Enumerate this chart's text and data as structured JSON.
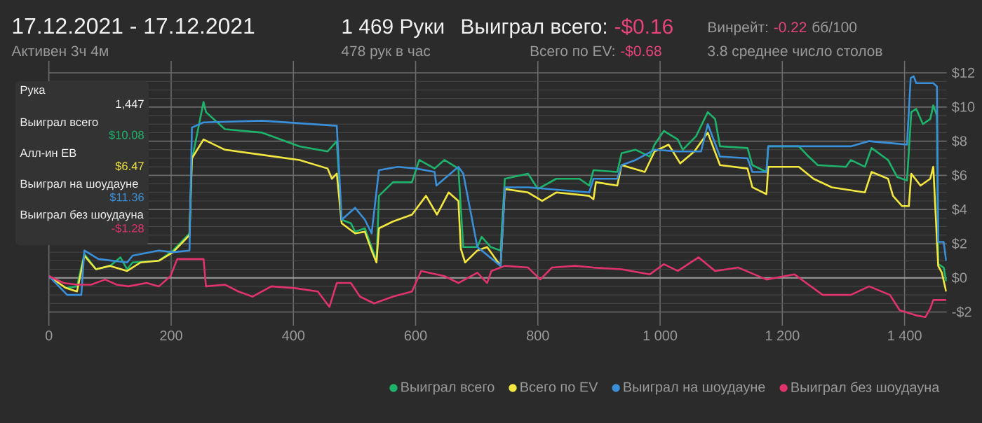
{
  "chart_data": {
    "type": "line",
    "title": "17.12.2021 - 17.12.2021",
    "subtitle": "Активен 3ч 4м",
    "annotations": [
      "1 469 Руки",
      "478 рук в час",
      "Выиграл всего:",
      "-$0.16",
      "Всего по EV:",
      "-$0.68",
      "Винрейт:",
      "-0.22",
      "бб/100",
      "3.8 среднее число столов",
      "Рука",
      "1,447",
      "Выиграл всего",
      "$10.08",
      "Алл-ин EB",
      "$6.47",
      "Выиграл на шоудауне",
      "$11.36",
      "Выиграл без шоудауна",
      "-$1.28"
    ],
    "xlim": [
      0,
      1469
    ],
    "xticks": [
      0,
      200,
      400,
      600,
      800,
      {
        "value": 1000,
        "label": "1 000"
      },
      {
        "value": 1200,
        "label": "1 200"
      },
      {
        "value": 1400,
        "label": "1 400"
      }
    ],
    "ylim": [
      -2.8,
      12.7
    ],
    "yticks": [
      {
        "value": -2,
        "label": "-$2"
      },
      {
        "value": 0,
        "label": "$0"
      },
      {
        "value": 2,
        "label": "$2"
      },
      {
        "value": 4,
        "label": "$4"
      },
      {
        "value": 6,
        "label": "$6"
      },
      {
        "value": 8,
        "label": "$8"
      },
      {
        "value": 10,
        "label": "$10"
      },
      {
        "value": 12,
        "label": "$12"
      }
    ],
    "grid": true,
    "legend": "bottom",
    "ref_lines": [
      {
        "axis": "y",
        "value": 0,
        "color": "#9a9a9a"
      }
    ],
    "series": [
      {
        "name": "Выиграл всего",
        "color": "#1db36b",
        "x": [
          28,
          46,
          58,
          77,
          100,
          117,
          128,
          137,
          180,
          203,
          230,
          234,
          253,
          257,
          288,
          349,
          410,
          456,
          471,
          479,
          494,
          501,
          517,
          528,
          536,
          540,
          563,
          594,
          606,
          631,
          647,
          670,
          678,
          701,
          708,
          723,
          739,
          746,
          784,
          800,
          830,
          868,
          884,
          891,
          930,
          937,
          960,
          983,
          991,
          1006,
          1029,
          1037,
          1059,
          1078,
          1090,
          1098,
          1143,
          1151,
          1174,
          1177,
          1227,
          1243,
          1258,
          1304,
          1312,
          1335,
          1346,
          1373,
          1388,
          1404,
          1411,
          1419,
          1430,
          1442,
          1447,
          1453,
          1455,
          1464,
          1468
        ],
        "values": [
          -0.6,
          -0.5,
          1.4,
          0.5,
          0.7,
          1.2,
          0.5,
          0.9,
          1.0,
          1.6,
          2.6,
          6.9,
          10.3,
          9.7,
          8.7,
          8.5,
          7.7,
          7.4,
          8.0,
          3.4,
          3.2,
          2.7,
          2.9,
          1.8,
          1.0,
          4.8,
          5.6,
          5.6,
          6.9,
          6.4,
          6.9,
          6.4,
          1.8,
          1.8,
          2.4,
          1.8,
          1.6,
          5.8,
          6.1,
          5.2,
          5.8,
          5.8,
          5.4,
          6.3,
          6.2,
          7.3,
          7.5,
          7.1,
          7.8,
          8.6,
          8.1,
          7.5,
          8.3,
          9.7,
          9.3,
          7.7,
          7.6,
          6.6,
          6.2,
          7.7,
          7.7,
          7.1,
          6.6,
          6.5,
          6.9,
          6.5,
          7.6,
          6.9,
          5.9,
          5.7,
          9.7,
          9.9,
          9.0,
          9.3,
          10.1,
          9.5,
          0.8,
          0.6,
          -0.2
        ]
      },
      {
        "name": "Всего по EV",
        "color": "#f2e640",
        "x": [
          0,
          28,
          46,
          58,
          77,
          100,
          128,
          150,
          180,
          203,
          230,
          234,
          253,
          288,
          349,
          410,
          456,
          463,
          471,
          479,
          501,
          517,
          528,
          536,
          540,
          563,
          594,
          617,
          635,
          654,
          670,
          674,
          681,
          701,
          717,
          739,
          746,
          784,
          807,
          830,
          884,
          891,
          895,
          930,
          937,
          975,
          991,
          1014,
          1033,
          1056,
          1078,
          1098,
          1143,
          1151,
          1174,
          1177,
          1227,
          1251,
          1281,
          1335,
          1346,
          1373,
          1381,
          1396,
          1407,
          1411,
          1426,
          1442,
          1447,
          1455,
          1461,
          1468
        ],
        "values": [
          0.1,
          -0.6,
          -0.8,
          1.3,
          0.5,
          0.7,
          0.4,
          0.9,
          1.0,
          1.5,
          2.5,
          7.0,
          8.1,
          7.5,
          7.2,
          6.9,
          6.4,
          5.8,
          6.1,
          3.2,
          2.6,
          2.7,
          1.6,
          0.9,
          2.9,
          3.3,
          3.7,
          4.8,
          3.7,
          5.0,
          4.5,
          1.7,
          0.9,
          1.6,
          1.8,
          0.7,
          5.2,
          5.0,
          4.5,
          5.0,
          4.8,
          4.6,
          5.6,
          5.4,
          6.6,
          6.2,
          7.4,
          7.8,
          6.7,
          7.4,
          8.5,
          6.6,
          6.4,
          5.3,
          4.9,
          6.5,
          6.5,
          5.8,
          5.3,
          5.0,
          6.2,
          5.8,
          4.8,
          4.2,
          4.2,
          6.1,
          5.4,
          5.8,
          6.5,
          0.7,
          0.3,
          -0.8
        ]
      },
      {
        "name": "Выиграл на шоудауне",
        "color": "#3a8fd9",
        "x": [
          0,
          30,
          53,
          58,
          81,
          128,
          137,
          180,
          203,
          230,
          234,
          253,
          349,
          471,
          479,
          501,
          517,
          528,
          540,
          571,
          601,
          631,
          634,
          670,
          678,
          701,
          739,
          746,
          784,
          884,
          891,
          930,
          937,
          960,
          991,
          1029,
          1067,
          1078,
          1098,
          1143,
          1151,
          1174,
          1177,
          1312,
          1342,
          1404,
          1410,
          1415,
          1419,
          1447,
          1453,
          1455,
          1464,
          1468
        ],
        "values": [
          0.1,
          -1.0,
          -1.0,
          1.6,
          1.1,
          0.9,
          1.3,
          1.6,
          1.5,
          1.6,
          8.8,
          9.1,
          9.2,
          8.9,
          3.4,
          4.1,
          3.4,
          2.6,
          6.3,
          6.5,
          6.4,
          6.2,
          5.4,
          6.5,
          6.1,
          1.8,
          0.7,
          5.3,
          5.3,
          5.0,
          5.8,
          5.8,
          6.6,
          6.9,
          7.5,
          7.4,
          7.4,
          9.0,
          7.1,
          7.0,
          6.2,
          6.2,
          7.7,
          7.7,
          8.0,
          7.8,
          11.7,
          11.8,
          11.4,
          11.4,
          11.2,
          2.1,
          2.1,
          1.0
        ]
      },
      {
        "name": "Выиграл без шоудауна",
        "color": "#e0336b",
        "x": [
          0,
          24,
          46,
          69,
          92,
          111,
          130,
          160,
          180,
          199,
          210,
          253,
          257,
          288,
          310,
          333,
          364,
          402,
          440,
          459,
          471,
          494,
          509,
          532,
          563,
          594,
          609,
          647,
          670,
          701,
          717,
          724,
          746,
          784,
          804,
          823,
          861,
          891,
          937,
          983,
          1006,
          1029,
          1063,
          1090,
          1128,
          1174,
          1220,
          1243,
          1266,
          1312,
          1342,
          1376,
          1392,
          1419,
          1434,
          1442,
          1447,
          1468
        ],
        "values": [
          0.1,
          -0.3,
          -0.4,
          -0.4,
          -0.1,
          -0.4,
          -0.5,
          -0.3,
          -0.5,
          0.1,
          1.1,
          1.1,
          -0.5,
          -0.4,
          -0.8,
          -1.1,
          -0.5,
          -0.6,
          -0.8,
          -1.7,
          -0.3,
          -0.3,
          -1.1,
          -1.5,
          -1.1,
          -0.8,
          0.4,
          0.1,
          -0.3,
          0.3,
          -0.3,
          0.4,
          0.7,
          0.6,
          -0.1,
          0.6,
          0.7,
          0.6,
          0.5,
          0.2,
          0.8,
          0.4,
          1.2,
          0.4,
          0.6,
          -0.1,
          0.2,
          -0.4,
          -1.0,
          -1.0,
          -0.5,
          -1.0,
          -1.9,
          -2.2,
          -2.3,
          -1.8,
          -1.3,
          -1.3
        ]
      }
    ]
  }
}
